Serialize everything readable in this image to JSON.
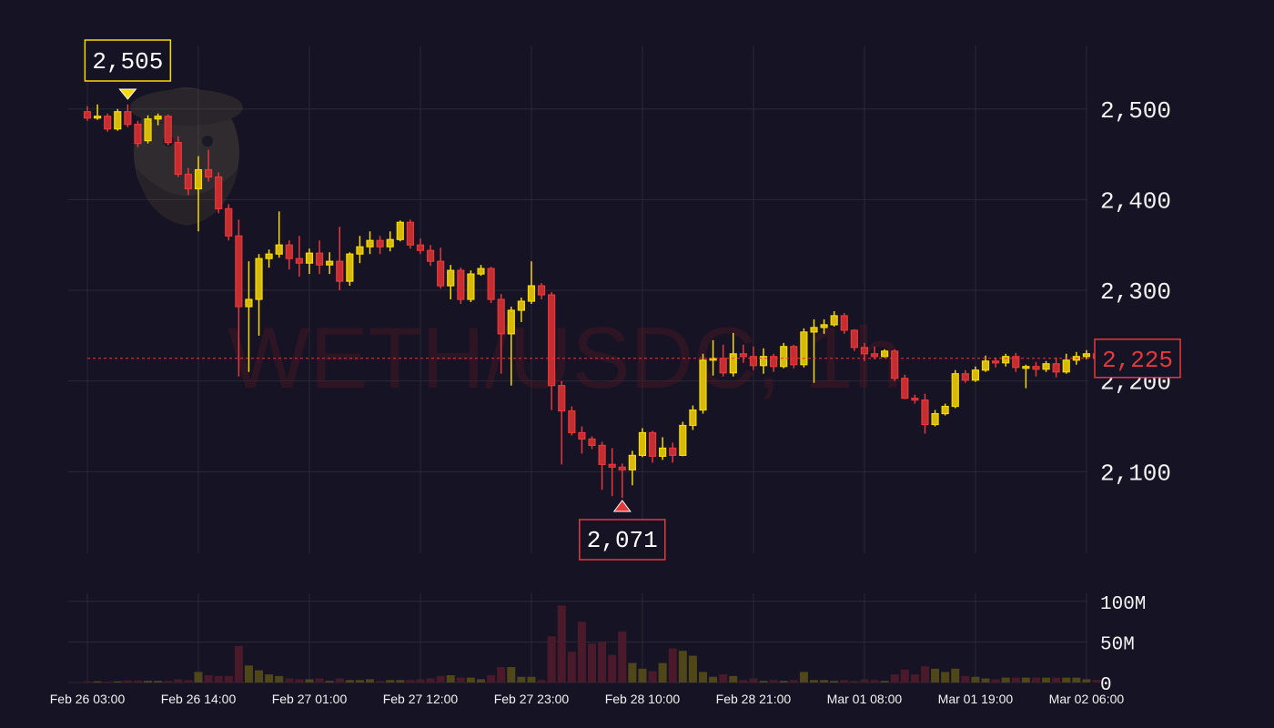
{
  "chart_data": {
    "type": "candlestick",
    "title": "",
    "watermark_text": "WETH/USDC, 1h",
    "price_axis": {
      "ticks": [
        2100,
        2200,
        2300,
        2400,
        2500
      ],
      "tick_labels": [
        "2,100",
        "2,200",
        "2,300",
        "2,400",
        "2,500"
      ],
      "ylim": [
        2010,
        2570
      ]
    },
    "volume_axis": {
      "ticks": [
        0,
        50000000,
        100000000
      ],
      "tick_labels": [
        "0",
        "50M",
        "100M"
      ],
      "ylim": [
        0,
        110000000
      ]
    },
    "time_axis": {
      "tick_labels": [
        "Feb 26 03:00",
        "Feb 26 14:00",
        "Feb 27 01:00",
        "Feb 27 12:00",
        "Feb 27 23:00",
        "Feb 28 10:00",
        "Feb 28 21:00",
        "Mar 01 08:00",
        "Mar 01 19:00",
        "Mar 02 06:00"
      ],
      "tick_index": [
        0,
        11,
        22,
        33,
        44,
        55,
        66,
        77,
        88,
        99
      ],
      "candle_count": 100
    },
    "current_price": {
      "value": 2225,
      "label": "2,225"
    },
    "high_marker": {
      "index": 4,
      "value": 2505,
      "label": "2,505"
    },
    "low_marker": {
      "index": 53,
      "value": 2071,
      "label": "2,071"
    },
    "colors": {
      "up": "#f5d90a",
      "down": "#e5393b",
      "grid": "#2b2935",
      "up_volume": "#4f4718",
      "down_volume": "#4a1a2a"
    },
    "candles": [
      [
        2497,
        2503,
        2487,
        2490,
        1.5
      ],
      [
        2490,
        2505,
        2488,
        2492,
        1.5
      ],
      [
        2492,
        2495,
        2475,
        2478,
        1.2
      ],
      [
        2478,
        2500,
        2476,
        2497,
        1.5
      ],
      [
        2497,
        2505,
        2480,
        2483,
        2.5
      ],
      [
        2483,
        2487,
        2458,
        2462,
        2.5
      ],
      [
        2465,
        2493,
        2462,
        2489,
        2.0
      ],
      [
        2489,
        2495,
        2482,
        2492,
        2.0
      ],
      [
        2492,
        2494,
        2460,
        2463,
        2.0
      ],
      [
        2463,
        2470,
        2425,
        2428,
        4.0
      ],
      [
        2428,
        2435,
        2405,
        2412,
        3.0
      ],
      [
        2412,
        2448,
        2365,
        2433,
        13.0
      ],
      [
        2433,
        2455,
        2420,
        2425,
        9.0
      ],
      [
        2425,
        2430,
        2385,
        2390,
        8.0
      ],
      [
        2390,
        2395,
        2355,
        2360,
        8.0
      ],
      [
        2360,
        2378,
        2205,
        2282,
        45.0
      ],
      [
        2282,
        2332,
        2210,
        2290,
        21.0
      ],
      [
        2290,
        2340,
        2250,
        2335,
        15.0
      ],
      [
        2335,
        2345,
        2325,
        2340,
        10.0
      ],
      [
        2340,
        2387,
        2336,
        2350,
        8.0
      ],
      [
        2350,
        2355,
        2323,
        2335,
        5.0
      ],
      [
        2335,
        2360,
        2315,
        2330,
        4.0
      ],
      [
        2330,
        2346,
        2318,
        2341,
        4.0
      ],
      [
        2341,
        2355,
        2318,
        2328,
        5.0
      ],
      [
        2328,
        2342,
        2318,
        2332,
        2.0
      ],
      [
        2332,
        2370,
        2300,
        2310,
        5.0
      ],
      [
        2310,
        2342,
        2305,
        2340,
        3.0
      ],
      [
        2340,
        2360,
        2330,
        2348,
        3.0
      ],
      [
        2348,
        2365,
        2340,
        2355,
        4.0
      ],
      [
        2355,
        2360,
        2340,
        2348,
        2.0
      ],
      [
        2348,
        2365,
        2343,
        2356,
        3.0
      ],
      [
        2356,
        2377,
        2354,
        2375,
        3.0
      ],
      [
        2375,
        2378,
        2346,
        2350,
        3.0
      ],
      [
        2350,
        2357,
        2340,
        2344,
        4.0
      ],
      [
        2344,
        2350,
        2327,
        2332,
        5.0
      ],
      [
        2332,
        2347,
        2302,
        2305,
        8.0
      ],
      [
        2305,
        2328,
        2290,
        2322,
        9.0
      ],
      [
        2322,
        2325,
        2285,
        2290,
        6.0
      ],
      [
        2290,
        2322,
        2287,
        2318,
        6.0
      ],
      [
        2318,
        2328,
        2316,
        2324,
        4.0
      ],
      [
        2324,
        2326,
        2286,
        2290,
        9.0
      ],
      [
        2290,
        2296,
        2208,
        2252,
        19.0
      ],
      [
        2252,
        2282,
        2195,
        2278,
        19.0
      ],
      [
        2278,
        2292,
        2265,
        2288,
        7.0
      ],
      [
        2288,
        2332,
        2285,
        2305,
        7.0
      ],
      [
        2305,
        2308,
        2290,
        2295,
        3.0
      ],
      [
        2295,
        2298,
        2168,
        2195,
        57.0
      ],
      [
        2195,
        2200,
        2108,
        2167,
        95.0
      ],
      [
        2167,
        2172,
        2140,
        2143,
        38.0
      ],
      [
        2143,
        2150,
        2120,
        2136,
        75.0
      ],
      [
        2136,
        2139,
        2125,
        2129,
        48.0
      ],
      [
        2129,
        2133,
        2080,
        2108,
        50.0
      ],
      [
        2108,
        2126,
        2073,
        2105,
        34.0
      ],
      [
        2105,
        2109,
        2071,
        2102,
        63.0
      ],
      [
        2102,
        2123,
        2085,
        2118,
        24.0
      ],
      [
        2118,
        2148,
        2116,
        2143,
        17.0
      ],
      [
        2143,
        2145,
        2110,
        2117,
        14.0
      ],
      [
        2117,
        2138,
        2113,
        2126,
        24.0
      ],
      [
        2126,
        2132,
        2110,
        2118,
        42.0
      ],
      [
        2118,
        2155,
        2117,
        2151,
        39.0
      ],
      [
        2151,
        2173,
        2146,
        2168,
        33.0
      ],
      [
        2168,
        2230,
        2164,
        2223,
        13.0
      ],
      [
        2223,
        2245,
        2206,
        2225,
        7.0
      ],
      [
        2225,
        2240,
        2205,
        2209,
        10.0
      ],
      [
        2209,
        2253,
        2205,
        2230,
        8.0
      ],
      [
        2230,
        2240,
        2220,
        2227,
        3.0
      ],
      [
        2227,
        2238,
        2212,
        2217,
        5.0
      ],
      [
        2217,
        2236,
        2208,
        2227,
        2.0
      ],
      [
        2227,
        2230,
        2210,
        2216,
        3.0
      ],
      [
        2216,
        2242,
        2214,
        2238,
        2.0
      ],
      [
        2238,
        2240,
        2214,
        2218,
        3.0
      ],
      [
        2218,
        2258,
        2215,
        2254,
        13.0
      ],
      [
        2254,
        2268,
        2198,
        2259,
        3.0
      ],
      [
        2259,
        2268,
        2252,
        2262,
        3.0
      ],
      [
        2262,
        2277,
        2260,
        2272,
        2.0
      ],
      [
        2272,
        2275,
        2252,
        2256,
        3.0
      ],
      [
        2256,
        2257,
        2233,
        2237,
        2.0
      ],
      [
        2237,
        2242,
        2222,
        2230,
        4.0
      ],
      [
        2230,
        2238,
        2224,
        2227,
        3.0
      ],
      [
        2227,
        2235,
        2226,
        2233,
        2.0
      ],
      [
        2233,
        2235,
        2200,
        2203,
        10.0
      ],
      [
        2203,
        2207,
        2180,
        2181,
        16.0
      ],
      [
        2181,
        2185,
        2175,
        2179,
        10.0
      ],
      [
        2179,
        2186,
        2142,
        2152,
        20.0
      ],
      [
        2152,
        2168,
        2150,
        2164,
        17.0
      ],
      [
        2164,
        2175,
        2162,
        2172,
        13.0
      ],
      [
        2172,
        2212,
        2170,
        2208,
        17.0
      ],
      [
        2208,
        2212,
        2198,
        2201,
        8.0
      ],
      [
        2201,
        2216,
        2199,
        2212,
        7.0
      ],
      [
        2212,
        2228,
        2210,
        2222,
        5.0
      ],
      [
        2222,
        2226,
        2215,
        2220,
        4.0
      ],
      [
        2220,
        2230,
        2216,
        2227,
        6.0
      ],
      [
        2227,
        2231,
        2210,
        2215,
        6.0
      ],
      [
        2215,
        2218,
        2192,
        2216,
        6.0
      ],
      [
        2216,
        2221,
        2205,
        2213,
        6.0
      ],
      [
        2213,
        2222,
        2210,
        2219,
        6.0
      ],
      [
        2219,
        2226,
        2204,
        2210,
        6.0
      ],
      [
        2210,
        2230,
        2208,
        2223,
        6.0
      ],
      [
        2223,
        2232,
        2218,
        2227,
        6.0
      ],
      [
        2227,
        2234,
        2224,
        2230,
        4.0
      ],
      [
        2230,
        2233,
        2220,
        2225,
        3.0
      ]
    ]
  }
}
